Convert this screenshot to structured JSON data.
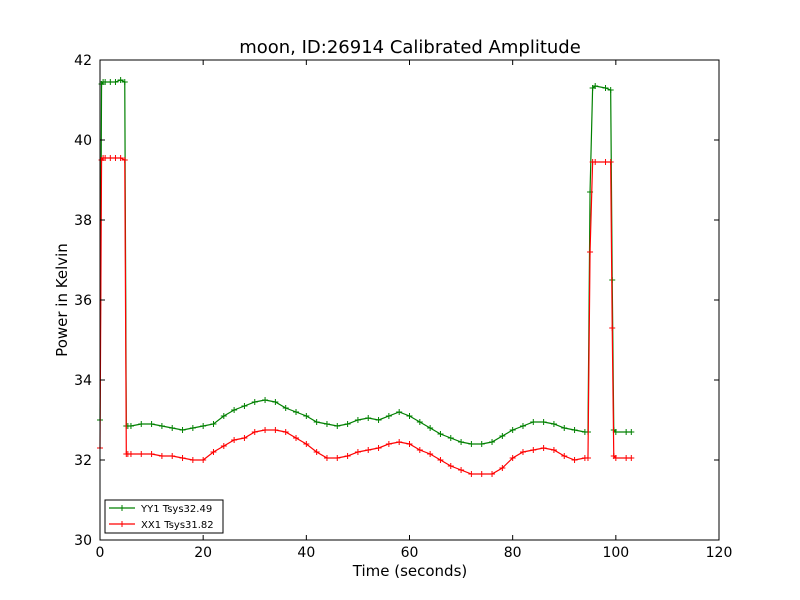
{
  "chart_data": {
    "type": "line",
    "title": "moon, ID:26914 Calibrated Amplitude",
    "xlabel": "Time (seconds)",
    "ylabel": "Power in Kelvin",
    "xlim": [
      0,
      120
    ],
    "ylim": [
      30,
      42
    ],
    "xticks": [
      "0",
      "20",
      "40",
      "60",
      "80",
      "100",
      "120"
    ],
    "yticks": [
      "30",
      "32",
      "34",
      "36",
      "38",
      "40",
      "42"
    ],
    "grid": false,
    "legend_position": "lower-left",
    "series": [
      {
        "name": "YY1 Tsys32.49",
        "color": "#008000",
        "x": [
          0,
          0.3,
          0.6,
          1,
          2,
          3,
          4,
          4.8,
          5.1,
          5.4,
          6,
          8,
          10,
          12,
          14,
          16,
          18,
          20,
          22,
          24,
          26,
          28,
          30,
          32,
          34,
          36,
          38,
          40,
          42,
          44,
          46,
          48,
          50,
          52,
          54,
          56,
          58,
          60,
          62,
          64,
          66,
          68,
          70,
          72,
          74,
          76,
          78,
          80,
          82,
          84,
          86,
          88,
          90,
          92,
          94,
          94.6,
          95,
          95.5,
          96,
          98,
          99,
          99.3,
          99.6,
          100,
          102,
          103
        ],
        "values": [
          33.0,
          41.4,
          41.45,
          41.45,
          41.45,
          41.45,
          41.5,
          41.45,
          32.85,
          32.85,
          32.85,
          32.9,
          32.9,
          32.85,
          32.8,
          32.75,
          32.8,
          32.85,
          32.9,
          33.1,
          33.25,
          33.35,
          33.45,
          33.5,
          33.45,
          33.3,
          33.2,
          33.1,
          32.95,
          32.9,
          32.85,
          32.9,
          33.0,
          33.05,
          33.0,
          33.1,
          33.2,
          33.1,
          32.95,
          32.8,
          32.65,
          32.55,
          32.45,
          32.4,
          32.4,
          32.45,
          32.6,
          32.75,
          32.85,
          32.95,
          32.95,
          32.9,
          32.8,
          32.75,
          32.7,
          32.7,
          38.7,
          41.3,
          41.35,
          41.3,
          41.25,
          36.5,
          32.75,
          32.7,
          32.7,
          32.7
        ]
      },
      {
        "name": "XX1 Tsys31.82",
        "color": "#ff0000",
        "x": [
          0,
          0.3,
          0.6,
          1,
          2,
          3,
          4,
          4.8,
          5.1,
          5.4,
          6,
          8,
          10,
          12,
          14,
          16,
          18,
          20,
          22,
          24,
          26,
          28,
          30,
          32,
          34,
          36,
          38,
          40,
          42,
          44,
          46,
          48,
          50,
          52,
          54,
          56,
          58,
          60,
          62,
          64,
          66,
          68,
          70,
          72,
          74,
          76,
          78,
          80,
          82,
          84,
          86,
          88,
          90,
          92,
          94,
          94.6,
          95,
          95.5,
          96,
          98,
          99,
          99.3,
          99.6,
          100,
          102,
          103
        ],
        "values": [
          32.3,
          39.5,
          39.55,
          39.55,
          39.55,
          39.55,
          39.55,
          39.5,
          32.15,
          32.15,
          32.15,
          32.15,
          32.15,
          32.1,
          32.1,
          32.05,
          32.0,
          32.0,
          32.2,
          32.35,
          32.5,
          32.55,
          32.7,
          32.75,
          32.75,
          32.7,
          32.55,
          32.4,
          32.2,
          32.05,
          32.05,
          32.1,
          32.2,
          32.25,
          32.3,
          32.4,
          32.45,
          32.4,
          32.25,
          32.15,
          32.0,
          31.85,
          31.75,
          31.65,
          31.65,
          31.65,
          31.8,
          32.05,
          32.2,
          32.25,
          32.3,
          32.25,
          32.1,
          32.0,
          32.05,
          32.05,
          37.2,
          39.45,
          39.45,
          39.45,
          39.45,
          35.3,
          32.1,
          32.05,
          32.05,
          32.05
        ]
      }
    ]
  }
}
